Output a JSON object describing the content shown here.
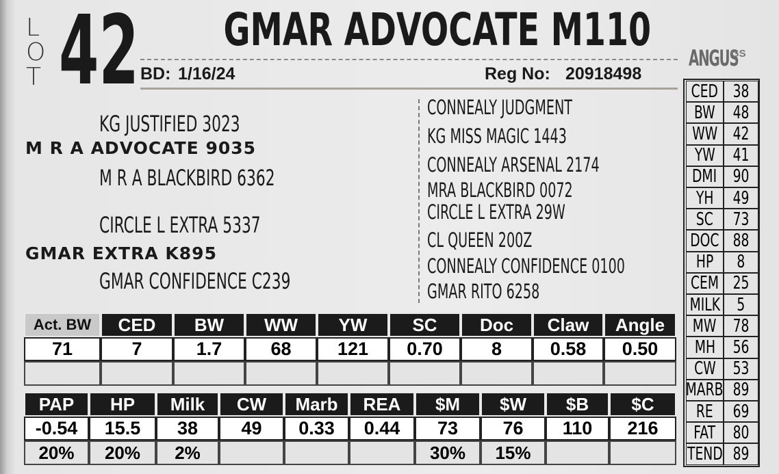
{
  "lot": {
    "letters": [
      "L",
      "O",
      "T"
    ],
    "number": "42"
  },
  "title": "GMAR ADVOCATE M110",
  "birth_date": {
    "label": "BD:",
    "value": "1/16/24"
  },
  "registration": {
    "label": "Reg No:",
    "value": "20918498"
  },
  "logo": {
    "text": "ANGUS",
    "suffix": "GS"
  },
  "pedigree": {
    "left": [
      "KG JUSTIFIED 3023",
      "M R A ADVOCATE 9035",
      "M R A BLACKBIRD 6362",
      "CIRCLE L EXTRA 5337",
      "GMAR EXTRA K895",
      "GMAR CONFIDENCE C239"
    ],
    "right": [
      "CONNEALY JUDGMENT",
      "KG MISS MAGIC 1443",
      "CONNEALY ARSENAL 2174",
      "MRA BLACKBIRD 0072",
      "CIRCLE L EXTRA 29W",
      "CL QUEEN 200Z",
      "CONNEALY CONFIDENCE 0100",
      "GMAR RITO 6258"
    ]
  },
  "side_table": {
    "rows": [
      [
        "CED",
        "38"
      ],
      [
        "BW",
        "48"
      ],
      [
        "WW",
        "42"
      ],
      [
        "YW",
        "41"
      ],
      [
        "DMI",
        "90"
      ],
      [
        "YH",
        "49"
      ],
      [
        "SC",
        "73"
      ],
      [
        "DOC",
        "88"
      ],
      [
        "HP",
        "8"
      ],
      [
        "CEM",
        "25"
      ],
      [
        "MILK",
        "5"
      ],
      [
        "MW",
        "78"
      ],
      [
        "MH",
        "56"
      ],
      [
        "CW",
        "53"
      ],
      [
        "MARB",
        "89"
      ],
      [
        "RE",
        "69"
      ],
      [
        "FAT",
        "80"
      ],
      [
        "TEND",
        "89"
      ]
    ]
  },
  "epd_table": {
    "headers": [
      "Act. BW",
      "CED",
      "BW",
      "WW",
      "YW",
      "SC",
      "Doc",
      "Claw",
      "Angle"
    ],
    "values": [
      "71",
      "7",
      "1.7",
      "68",
      "121",
      "0.70",
      "8",
      "0.58",
      "0.50"
    ]
  },
  "index_table": {
    "headers": [
      "PAP",
      "HP",
      "Milk",
      "CW",
      "Marb",
      "REA",
      "$M",
      "$W",
      "$B",
      "$C"
    ],
    "values": [
      "-0.54",
      "15.5",
      "38",
      "49",
      "0.33",
      "0.44",
      "73",
      "76",
      "110",
      "216"
    ],
    "percentiles": [
      "20%",
      "20%",
      "2%",
      null,
      null,
      null,
      "30%",
      "15%",
      null,
      null
    ]
  }
}
